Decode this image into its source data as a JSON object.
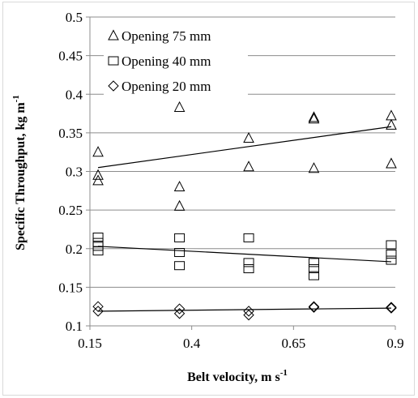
{
  "chart_data": {
    "type": "scatter",
    "xlabel": "Belt velocity, m s",
    "xlabel_sup": "-1",
    "ylabel": "Specific Throughput, kg m",
    "ylabel_sup": "-1",
    "xlim": [
      0.15,
      0.9
    ],
    "ylim": [
      0.1,
      0.5
    ],
    "xticks": [
      0.15,
      0.4,
      0.65,
      0.9
    ],
    "xtick_labels": [
      "0.15",
      "0.4",
      "0.65",
      "0.9"
    ],
    "yticks": [
      0.1,
      0.15,
      0.2,
      0.25,
      0.3,
      0.35,
      0.4,
      0.45,
      0.5
    ],
    "ytick_labels": [
      "0.1",
      "0.15",
      "0.2",
      "0.25",
      "0.3",
      "0.35",
      "0.4",
      "0.45",
      "0.5"
    ],
    "grid": "horizontal",
    "legend_position": "top-left",
    "series": [
      {
        "name": "Opening 75 mm",
        "marker": "triangle",
        "x": [
          0.17,
          0.17,
          0.17,
          0.37,
          0.37,
          0.37,
          0.54,
          0.54,
          0.7,
          0.7,
          0.7,
          0.89,
          0.89,
          0.89
        ],
        "y": [
          0.325,
          0.295,
          0.288,
          0.383,
          0.28,
          0.255,
          0.343,
          0.306,
          0.37,
          0.368,
          0.304,
          0.372,
          0.36,
          0.31
        ],
        "trend": [
          [
            0.17,
            0.305
          ],
          [
            0.89,
            0.358
          ]
        ]
      },
      {
        "name": "Opening 40 mm",
        "marker": "square",
        "x": [
          0.17,
          0.17,
          0.17,
          0.17,
          0.37,
          0.37,
          0.37,
          0.54,
          0.54,
          0.54,
          0.7,
          0.7,
          0.7,
          0.89,
          0.89,
          0.89
        ],
        "y": [
          0.215,
          0.208,
          0.203,
          0.197,
          0.214,
          0.195,
          0.178,
          0.214,
          0.182,
          0.174,
          0.182,
          0.174,
          0.165,
          0.205,
          0.193,
          0.185
        ],
        "trend": [
          [
            0.17,
            0.203
          ],
          [
            0.89,
            0.183
          ]
        ]
      },
      {
        "name": "Opening 20 mm",
        "marker": "diamond",
        "x": [
          0.17,
          0.17,
          0.37,
          0.37,
          0.54,
          0.54,
          0.7,
          0.7,
          0.89,
          0.89
        ],
        "y": [
          0.125,
          0.119,
          0.122,
          0.116,
          0.119,
          0.114,
          0.125,
          0.124,
          0.124,
          0.123
        ],
        "trend": [
          [
            0.17,
            0.119
          ],
          [
            0.89,
            0.123
          ]
        ]
      }
    ]
  }
}
